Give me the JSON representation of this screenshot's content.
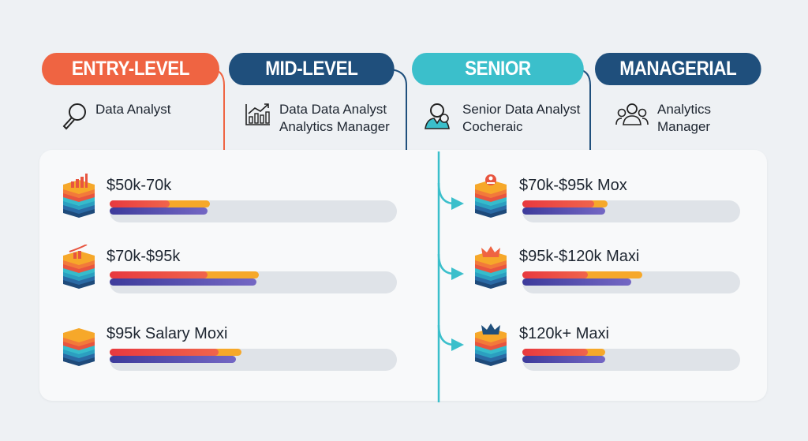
{
  "colors": {
    "entry": "#ef6442",
    "mid": "#1f4f7c",
    "senior": "#3bbfcb",
    "managerial": "#1f4f7c",
    "bar_red": "#e8393f",
    "bar_orange": "#f6a82a",
    "bar_purple": "#5549ad",
    "track": "#dfe3e8"
  },
  "levels": [
    {
      "title": "ENTRY-LEVEL",
      "icon": "magnifier-icon",
      "roles": [
        "Data Analyst"
      ]
    },
    {
      "title": "MID-LEVEL",
      "icon": "bar-chart-growth-icon",
      "roles": [
        "Data Data Analyst",
        "Analytics Manager"
      ]
    },
    {
      "title": "SENIOR",
      "icon": "person-search-icon",
      "roles": [
        "Senior Data Analyst",
        "Cocheraic"
      ]
    },
    {
      "title": "MANAGERIAL",
      "icon": "team-icon",
      "roles": [
        "Analytics",
        "Manager"
      ]
    }
  ],
  "salaries_left": [
    {
      "label": "$50k-70k",
      "icon": "stack-bar-chart-icon",
      "red": 0.21,
      "orange": 0.35,
      "purple": 0.34
    },
    {
      "label": "$70k-$95k",
      "icon": "stack-growth-chart-icon",
      "red": 0.34,
      "orange": 0.52,
      "purple": 0.51
    },
    {
      "label": "$95k Salary Moxi",
      "icon": "stack-icon",
      "red": 0.38,
      "orange": 0.46,
      "purple": 0.44
    }
  ],
  "salaries_right": [
    {
      "label": "$70k-$95k Mox",
      "icon": "stack-person-badge-icon",
      "red": 0.33,
      "orange": 0.39,
      "purple": 0.38
    },
    {
      "label": "$95k-$120k Maxi",
      "icon": "stack-crown-icon",
      "red": 0.3,
      "orange": 0.55,
      "purple": 0.5
    },
    {
      "label": "$120k+ Maxi",
      "icon": "stack-crown-navy-icon",
      "red": 0.3,
      "orange": 0.38,
      "purple": 0.38
    }
  ]
}
